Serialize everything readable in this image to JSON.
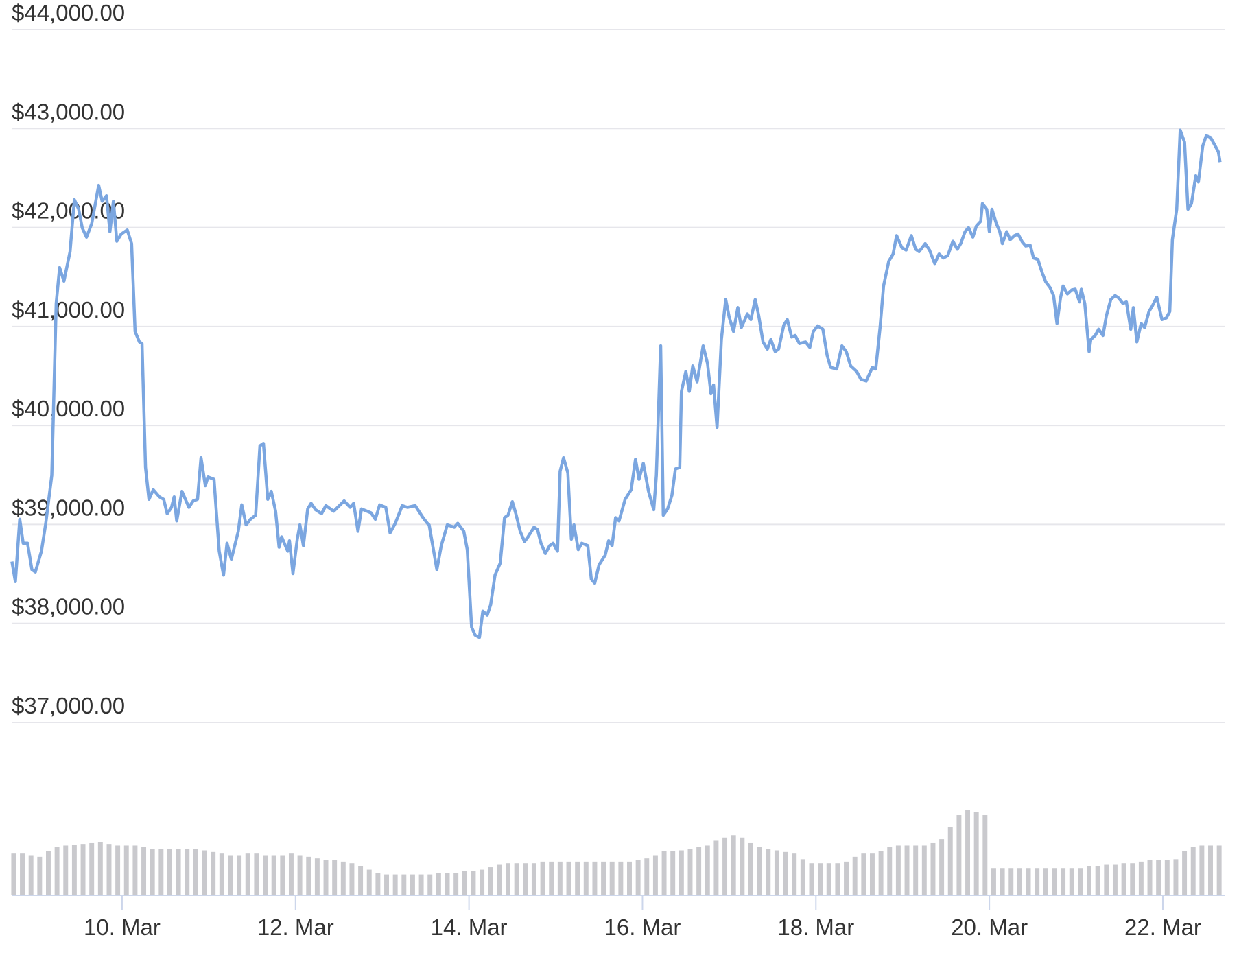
{
  "chart_data": {
    "type": "line",
    "color": "#7ba6e0",
    "grid": true,
    "xlim": [
      8.727,
      22.72
    ],
    "ylim": [
      37000,
      44000
    ],
    "yticks": [
      {
        "value": 37000,
        "label": "$37,000.00"
      },
      {
        "value": 38000,
        "label": "$38,000.00"
      },
      {
        "value": 39000,
        "label": "$39,000.00"
      },
      {
        "value": 40000,
        "label": "$40,000.00"
      },
      {
        "value": 41000,
        "label": "$41,000.00"
      },
      {
        "value": 42000,
        "label": "$42,000.00"
      },
      {
        "value": 43000,
        "label": "$43,000.00"
      },
      {
        "value": 44000,
        "label": "$44,000.00"
      }
    ],
    "xticks": [
      {
        "value": 10,
        "label": "10. Mar"
      },
      {
        "value": 12,
        "label": "12. Mar"
      },
      {
        "value": 14,
        "label": "14. Mar"
      },
      {
        "value": 16,
        "label": "16. Mar"
      },
      {
        "value": 18,
        "label": "18. Mar"
      },
      {
        "value": 20,
        "label": "20. Mar"
      },
      {
        "value": 22,
        "label": "22. Mar"
      }
    ],
    "x": [
      8.73,
      8.77,
      8.82,
      8.86,
      8.91,
      8.96,
      9.0,
      9.07,
      9.12,
      9.19,
      9.24,
      9.28,
      9.33,
      9.4,
      9.45,
      9.5,
      9.54,
      9.59,
      9.65,
      9.73,
      9.77,
      9.82,
      9.86,
      9.9,
      9.94,
      9.99,
      10.06,
      10.11,
      10.15,
      10.2,
      10.23,
      10.27,
      10.31,
      10.36,
      10.43,
      10.48,
      10.52,
      10.57,
      10.6,
      10.63,
      10.69,
      10.77,
      10.82,
      10.87,
      10.91,
      10.96,
      10.99,
      11.06,
      11.12,
      11.17,
      11.21,
      11.26,
      11.34,
      11.38,
      11.43,
      11.48,
      11.54,
      11.59,
      11.63,
      11.68,
      11.72,
      11.77,
      11.81,
      11.84,
      11.91,
      11.93,
      11.97,
      12.02,
      12.05,
      12.09,
      12.14,
      12.18,
      12.23,
      12.3,
      12.35,
      12.44,
      12.56,
      12.63,
      12.67,
      12.72,
      12.76,
      12.87,
      12.92,
      12.97,
      13.04,
      13.09,
      13.15,
      13.23,
      13.29,
      13.38,
      13.47,
      13.52,
      13.54,
      13.63,
      13.68,
      13.75,
      13.83,
      13.87,
      13.94,
      13.98,
      14.03,
      14.07,
      14.12,
      14.16,
      14.21,
      14.25,
      14.3,
      14.36,
      14.41,
      14.45,
      14.5,
      14.54,
      14.59,
      14.64,
      14.68,
      14.75,
      14.79,
      14.83,
      14.88,
      14.93,
      14.97,
      15.02,
      15.05,
      15.09,
      15.14,
      15.18,
      15.21,
      15.26,
      15.3,
      15.37,
      15.41,
      15.45,
      15.5,
      15.57,
      15.61,
      15.65,
      15.69,
      15.73,
      15.8,
      15.87,
      15.92,
      15.96,
      16.01,
      16.07,
      16.13,
      16.16,
      16.21,
      16.24,
      16.29,
      16.34,
      16.38,
      16.43,
      16.45,
      16.5,
      16.54,
      16.58,
      16.63,
      16.7,
      16.75,
      16.79,
      16.82,
      16.86,
      16.91,
      16.96,
      17.0,
      17.05,
      17.1,
      17.14,
      17.21,
      17.25,
      17.3,
      17.34,
      17.39,
      17.44,
      17.48,
      17.53,
      17.57,
      17.63,
      17.67,
      17.72,
      17.76,
      17.81,
      17.88,
      17.93,
      17.97,
      18.02,
      18.08,
      18.13,
      18.17,
      18.24,
      18.3,
      18.35,
      18.4,
      18.47,
      18.52,
      18.58,
      18.63,
      18.65,
      18.69,
      18.74,
      18.78,
      18.84,
      18.89,
      18.93,
      18.99,
      19.04,
      19.1,
      19.15,
      19.19,
      19.26,
      19.31,
      19.37,
      19.42,
      19.47,
      19.52,
      19.58,
      19.63,
      19.67,
      19.72,
      19.76,
      19.81,
      19.85,
      19.9,
      19.92,
      19.97,
      20.0,
      20.03,
      20.08,
      20.12,
      20.15,
      20.2,
      20.24,
      20.29,
      20.33,
      20.38,
      20.42,
      20.47,
      20.51,
      20.56,
      20.61,
      20.65,
      20.7,
      20.74,
      20.78,
      20.82,
      20.85,
      20.9,
      20.95,
      20.99,
      21.04,
      21.06,
      21.1,
      21.15,
      21.17,
      21.22,
      21.26,
      21.31,
      21.35,
      21.4,
      21.45,
      21.49,
      21.54,
      21.58,
      21.63,
      21.66,
      21.7,
      21.75,
      21.79,
      21.84,
      21.88,
      21.93,
      21.99,
      22.04,
      22.08,
      22.11,
      22.16,
      22.2,
      22.25,
      22.29,
      22.33,
      22.38,
      22.41,
      22.46,
      22.5,
      22.55,
      22.59,
      22.64,
      22.66
    ],
    "values": [
      38625,
      38423,
      39052,
      38810,
      38810,
      38544,
      38520,
      38730,
      39012,
      39496,
      41232,
      41595,
      41458,
      41756,
      42281,
      42184,
      41998,
      41902,
      42039,
      42426,
      42265,
      42321,
      41958,
      42265,
      41861,
      41934,
      41974,
      41837,
      40949,
      40844,
      40828,
      39577,
      39254,
      39351,
      39279,
      39254,
      39109,
      39173,
      39279,
      39036,
      39335,
      39173,
      39238,
      39254,
      39674,
      39391,
      39480,
      39456,
      38730,
      38488,
      38810,
      38649,
      38931,
      39198,
      38996,
      39052,
      39093,
      39795,
      39819,
      39254,
      39335,
      39133,
      38770,
      38875,
      38730,
      38835,
      38504,
      38851,
      38996,
      38786,
      39157,
      39214,
      39149,
      39109,
      39190,
      39133,
      39238,
      39173,
      39214,
      38931,
      39157,
      39117,
      39052,
      39198,
      39173,
      38915,
      39012,
      39190,
      39173,
      39190,
      39069,
      39012,
      38996,
      38544,
      38786,
      38996,
      38972,
      39012,
      38931,
      38746,
      37963,
      37882,
      37858,
      38124,
      38084,
      38189,
      38488,
      38609,
      39069,
      39093,
      39230,
      39109,
      38931,
      38827,
      38875,
      38972,
      38948,
      38810,
      38706,
      38786,
      38810,
      38730,
      39537,
      39674,
      39521,
      38851,
      38996,
      38746,
      38810,
      38786,
      38447,
      38407,
      38593,
      38689,
      38835,
      38786,
      39069,
      39036,
      39254,
      39351,
      39658,
      39456,
      39617,
      39335,
      39149,
      39496,
      40804,
      39093,
      39157,
      39295,
      39561,
      39577,
      40344,
      40546,
      40344,
      40602,
      40441,
      40804,
      40626,
      40320,
      40409,
      39981,
      40868,
      41272,
      41094,
      40949,
      41191,
      40989,
      41127,
      41070,
      41272,
      41111,
      40844,
      40772,
      40868,
      40747,
      40772,
      41014,
      41070,
      40893,
      40909,
      40828,
      40844,
      40788,
      40949,
      41006,
      40973,
      40707,
      40586,
      40570,
      40804,
      40747,
      40602,
      40546,
      40465,
      40449,
      40546,
      40586,
      40570,
      40989,
      41409,
      41659,
      41732,
      41918,
      41797,
      41772,
      41918,
      41780,
      41756,
      41837,
      41772,
      41635,
      41732,
      41692,
      41716,
      41861,
      41780,
      41837,
      41958,
      41998,
      41902,
      42015,
      42063,
      42241,
      42184,
      41958,
      42184,
      42039,
      41958,
      41837,
      41958,
      41877,
      41918,
      41934,
      41853,
      41813,
      41821,
      41692,
      41676,
      41539,
      41450,
      41393,
      41312,
      41030,
      41288,
      41409,
      41329,
      41369,
      41377,
      41248,
      41377,
      41232,
      40747,
      40868,
      40909,
      40973,
      40909,
      41111,
      41272,
      41312,
      41288,
      41232,
      41248,
      40973,
      41191,
      40844,
      41030,
      40989,
      41151,
      41208,
      41296,
      41070,
      41086,
      41151,
      41877,
      42184,
      42983,
      42862,
      42184,
      42241,
      42523,
      42459,
      42822,
      42927,
      42910,
      42846,
      42765,
      42660
    ],
    "volume": {
      "color": "#c9c9cd",
      "x": [
        8.75,
        8.85,
        8.95,
        9.05,
        9.15,
        9.25,
        9.35,
        9.45,
        9.55,
        9.65,
        9.75,
        9.85,
        9.95,
        10.05,
        10.15,
        10.25,
        10.35,
        10.45,
        10.55,
        10.65,
        10.75,
        10.85,
        10.95,
        11.05,
        11.15,
        11.25,
        11.35,
        11.45,
        11.55,
        11.65,
        11.75,
        11.85,
        11.95,
        12.05,
        12.15,
        12.25,
        12.35,
        12.45,
        12.55,
        12.65,
        12.75,
        12.85,
        12.95,
        13.05,
        13.15,
        13.25,
        13.35,
        13.45,
        13.55,
        13.65,
        13.75,
        13.85,
        13.95,
        14.05,
        14.15,
        14.25,
        14.35,
        14.45,
        14.55,
        14.65,
        14.75,
        14.85,
        14.95,
        15.05,
        15.15,
        15.25,
        15.35,
        15.45,
        15.55,
        15.65,
        15.75,
        15.85,
        15.95,
        16.05,
        16.15,
        16.25,
        16.35,
        16.45,
        16.55,
        16.65,
        16.75,
        16.85,
        16.95,
        17.05,
        17.15,
        17.25,
        17.35,
        17.45,
        17.55,
        17.65,
        17.75,
        17.85,
        17.95,
        18.05,
        18.15,
        18.25,
        18.35,
        18.45,
        18.55,
        18.65,
        18.75,
        18.85,
        18.95,
        19.05,
        19.15,
        19.25,
        19.35,
        19.45,
        19.55,
        19.65,
        19.75,
        19.85,
        19.95,
        20.05,
        20.15,
        20.25,
        20.35,
        20.45,
        20.55,
        20.65,
        20.75,
        20.85,
        20.95,
        21.05,
        21.15,
        21.25,
        21.35,
        21.45,
        21.55,
        21.65,
        21.75,
        21.85,
        21.95,
        22.05,
        22.15,
        22.25,
        22.35,
        22.45,
        22.55,
        22.65
      ],
      "values": [
        52,
        52,
        50,
        48,
        55,
        60,
        62,
        63,
        64,
        65,
        66,
        64,
        62,
        62,
        62,
        60,
        58,
        58,
        58,
        58,
        58,
        58,
        56,
        54,
        52,
        50,
        50,
        52,
        52,
        50,
        50,
        50,
        52,
        50,
        48,
        46,
        44,
        44,
        42,
        40,
        36,
        32,
        28,
        26,
        26,
        26,
        26,
        26,
        26,
        28,
        28,
        28,
        30,
        30,
        32,
        35,
        38,
        40,
        40,
        40,
        40,
        42,
        42,
        42,
        42,
        42,
        42,
        42,
        42,
        42,
        42,
        42,
        44,
        46,
        50,
        55,
        55,
        56,
        58,
        60,
        62,
        68,
        72,
        75,
        72,
        65,
        60,
        58,
        56,
        54,
        52,
        45,
        40,
        40,
        40,
        40,
        42,
        48,
        52,
        52,
        55,
        60,
        62,
        62,
        62,
        62,
        65,
        70,
        85,
        100,
        106,
        104,
        100,
        34,
        34,
        34,
        34,
        34,
        34,
        34,
        34,
        34,
        34,
        34,
        36,
        36,
        38,
        38,
        40,
        40,
        42,
        44,
        44,
        44,
        45,
        55,
        60,
        62,
        62,
        62
      ]
    }
  }
}
